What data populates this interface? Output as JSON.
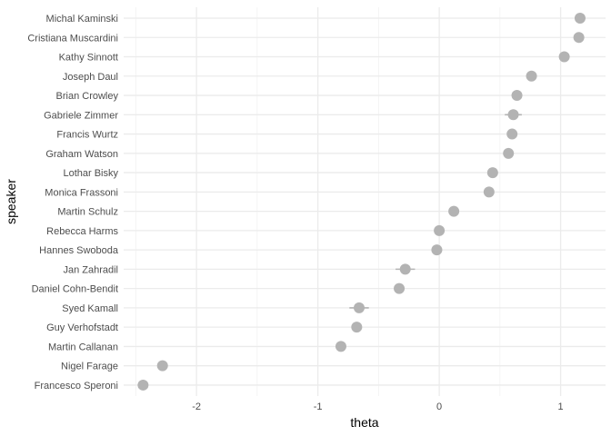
{
  "chart_data": {
    "type": "scatter",
    "xlabel": "theta",
    "ylabel": "speaker",
    "xlim": [
      -2.6,
      1.37
    ],
    "x_ticks": [
      -2,
      -1,
      0,
      1
    ],
    "x_tick_labels": [
      "-2",
      "-1",
      "0",
      "1"
    ],
    "grid": true,
    "point_color": "#b3b3b3",
    "categories": [
      "Michal Kaminski",
      "Cristiana Muscardini",
      "Kathy Sinnott",
      "Joseph Daul",
      "Brian Crowley",
      "Gabriele Zimmer",
      "Francis Wurtz",
      "Graham Watson",
      "Lothar Bisky",
      "Monica Frassoni",
      "Martin Schulz",
      "Rebecca Harms",
      "Hannes Swoboda",
      "Jan Zahradil",
      "Daniel Cohn-Bendit",
      "Syed Kamall",
      "Guy Verhofstadt",
      "Martin Callanan",
      "Nigel Farage",
      "Francesco Speroni"
    ],
    "points": [
      {
        "speaker": "Michal Kaminski",
        "theta": 1.16,
        "lower": 1.13,
        "upper": 1.19
      },
      {
        "speaker": "Cristiana Muscardini",
        "theta": 1.15,
        "lower": 1.12,
        "upper": 1.18
      },
      {
        "speaker": "Kathy Sinnott",
        "theta": 1.03,
        "lower": 1.0,
        "upper": 1.06
      },
      {
        "speaker": "Joseph Daul",
        "theta": 0.76,
        "lower": 0.73,
        "upper": 0.79
      },
      {
        "speaker": "Brian Crowley",
        "theta": 0.64,
        "lower": 0.61,
        "upper": 0.67
      },
      {
        "speaker": "Gabriele Zimmer",
        "theta": 0.61,
        "lower": 0.54,
        "upper": 0.68
      },
      {
        "speaker": "Francis Wurtz",
        "theta": 0.6,
        "lower": 0.57,
        "upper": 0.63
      },
      {
        "speaker": "Graham Watson",
        "theta": 0.57,
        "lower": 0.54,
        "upper": 0.6
      },
      {
        "speaker": "Lothar Bisky",
        "theta": 0.44,
        "lower": 0.41,
        "upper": 0.47
      },
      {
        "speaker": "Monica Frassoni",
        "theta": 0.41,
        "lower": 0.38,
        "upper": 0.44
      },
      {
        "speaker": "Martin Schulz",
        "theta": 0.12,
        "lower": 0.09,
        "upper": 0.15
      },
      {
        "speaker": "Rebecca Harms",
        "theta": 0.0,
        "lower": -0.03,
        "upper": 0.03
      },
      {
        "speaker": "Hannes Swoboda",
        "theta": -0.02,
        "lower": -0.05,
        "upper": 0.01
      },
      {
        "speaker": "Jan Zahradil",
        "theta": -0.28,
        "lower": -0.36,
        "upper": -0.2
      },
      {
        "speaker": "Daniel Cohn-Bendit",
        "theta": -0.33,
        "lower": -0.36,
        "upper": -0.3
      },
      {
        "speaker": "Syed Kamall",
        "theta": -0.66,
        "lower": -0.74,
        "upper": -0.58
      },
      {
        "speaker": "Guy Verhofstadt",
        "theta": -0.68,
        "lower": -0.71,
        "upper": -0.65
      },
      {
        "speaker": "Martin Callanan",
        "theta": -0.81,
        "lower": -0.84,
        "upper": -0.78
      },
      {
        "speaker": "Nigel Farage",
        "theta": -2.28,
        "lower": -2.31,
        "upper": -2.25
      },
      {
        "speaker": "Francesco Speroni",
        "theta": -2.44,
        "lower": -2.47,
        "upper": -2.41
      }
    ]
  }
}
